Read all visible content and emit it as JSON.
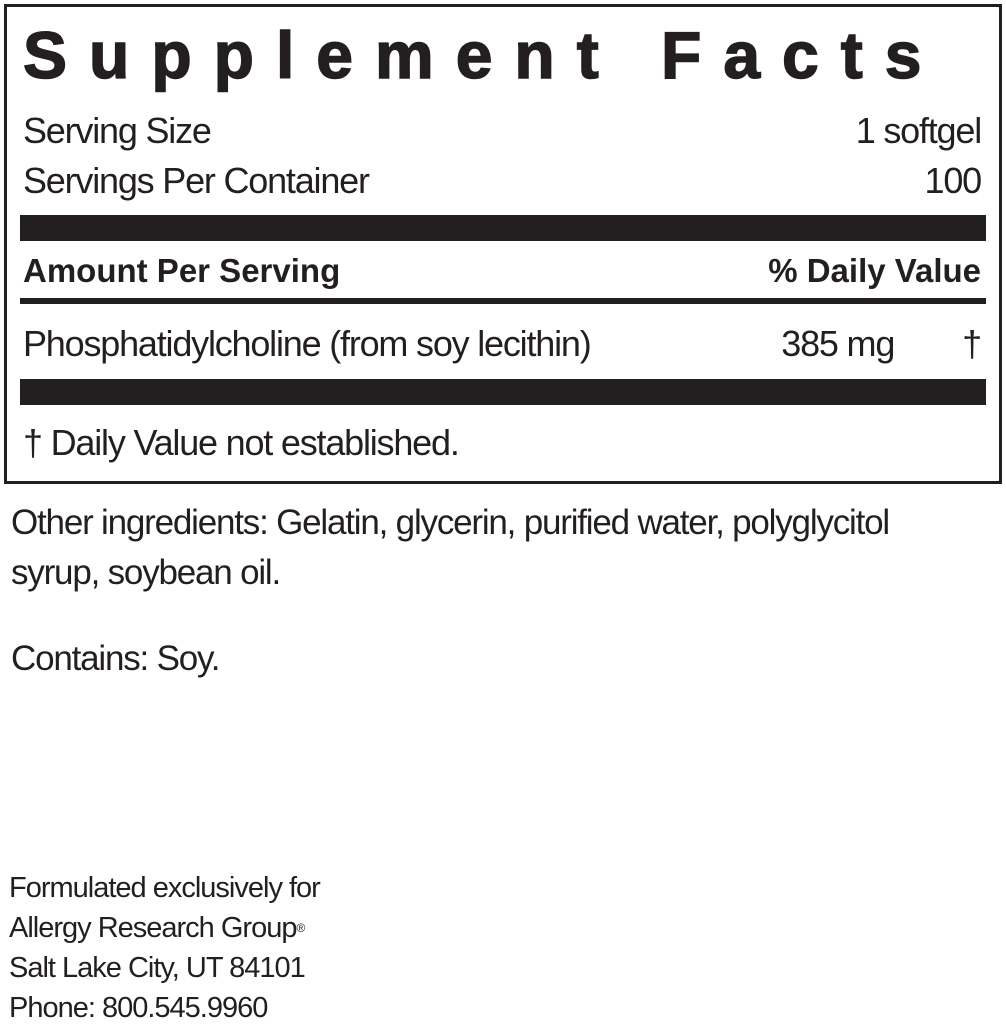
{
  "title": "Supplement Facts",
  "serving": {
    "size_label": "Serving Size",
    "size_value": "1 softgel",
    "per_container_label": "Servings Per Container",
    "per_container_value": "100"
  },
  "header": {
    "amount": "Amount Per Serving",
    "daily_value": "% Daily Value"
  },
  "ingredients": [
    {
      "name": "Phosphatidylcholine (from soy lecithin)",
      "amount": "385 mg",
      "dv": "†"
    }
  ],
  "footnote": "† Daily Value not established.",
  "other_ingredients": "Other ingredients: Gelatin, glycerin, purified water, polyglycitol syrup, soybean oil.",
  "contains_label": "Contains:",
  "contains_value": "Soy.",
  "footer": {
    "line1": "Formulated exclusively for",
    "line2": "Allergy Research Group",
    "registered": "®",
    "line3": "Salt Lake City, UT 84101",
    "line4": "Phone: 800.545.9960"
  }
}
